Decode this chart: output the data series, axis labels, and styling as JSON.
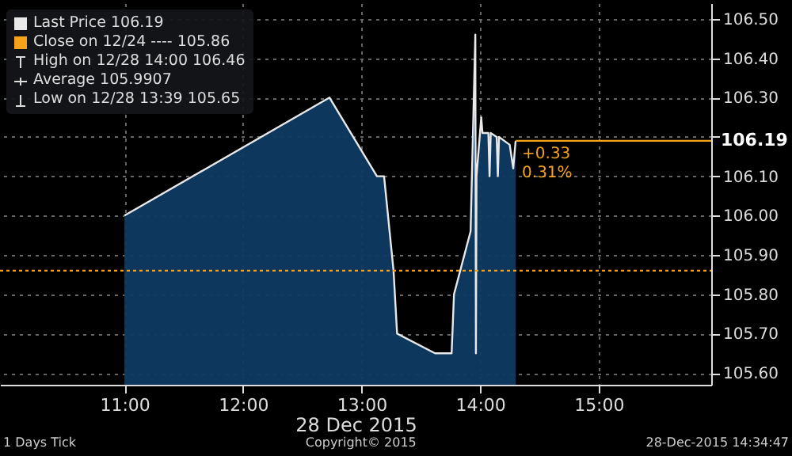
{
  "chart_data": {
    "type": "area",
    "xlabel": "28 Dec 2015",
    "x": [
      11.0,
      12.73,
      13.13,
      13.19,
      13.27,
      13.3,
      13.62,
      13.76,
      13.78,
      13.92,
      13.96,
      13.965,
      13.97,
      14.01,
      14.02,
      14.07,
      14.08,
      14.09,
      14.14,
      14.15,
      14.16,
      14.25,
      14.28,
      14.3
    ],
    "series": [
      {
        "name": "Last Price",
        "color": "#e8e8e8",
        "values": [
          106.0,
          106.3,
          106.1,
          106.1,
          105.86,
          105.7,
          105.65,
          105.65,
          105.8,
          105.96,
          106.46,
          105.65,
          106.1,
          106.25,
          106.21,
          106.21,
          106.1,
          106.21,
          106.2,
          106.1,
          106.2,
          106.18,
          106.12,
          106.19
        ]
      }
    ],
    "xlim": [
      9.95,
      15.95
    ],
    "xticks": [
      {
        "value": 11,
        "label": "11:00"
      },
      {
        "value": 12,
        "label": "12:00"
      },
      {
        "value": 13,
        "label": "13:00"
      },
      {
        "value": 14,
        "label": "14:00"
      },
      {
        "value": 15,
        "label": "15:00"
      }
    ],
    "ylim": [
      105.57,
      106.54
    ],
    "yticks": [
      {
        "value": 105.6,
        "label": "105.60"
      },
      {
        "value": 105.7,
        "label": "105.70"
      },
      {
        "value": 105.8,
        "label": "105.80"
      },
      {
        "value": 105.9,
        "label": "105.90"
      },
      {
        "value": 106.0,
        "label": "106.00"
      },
      {
        "value": 106.1,
        "label": "106.10"
      },
      {
        "value": 106.2,
        "label": null
      },
      {
        "value": 106.3,
        "label": "106.30"
      },
      {
        "value": 106.4,
        "label": "106.40"
      },
      {
        "value": 106.5,
        "label": "106.50"
      }
    ],
    "ref_lines": [
      {
        "axis": "y",
        "value": 105.86,
        "label": "Close on 12/24 ---- 105.86",
        "color": "#f7a21b",
        "line_style": "dashed"
      },
      {
        "axis": "y",
        "value": 106.19,
        "label": "106.19",
        "color": "#f7a21b",
        "line_style": "solid"
      }
    ],
    "annotations": [
      "High on 12/28 14:00 106.46",
      "Average 105.9907",
      "Low on 12/28 13:39 105.65",
      "+0.33",
      "0.31%",
      "1 Days  Tick",
      "Copyright© 2015",
      "28-Dec-2015 14:34:47"
    ],
    "grid": true,
    "legend": "top left"
  }
}
